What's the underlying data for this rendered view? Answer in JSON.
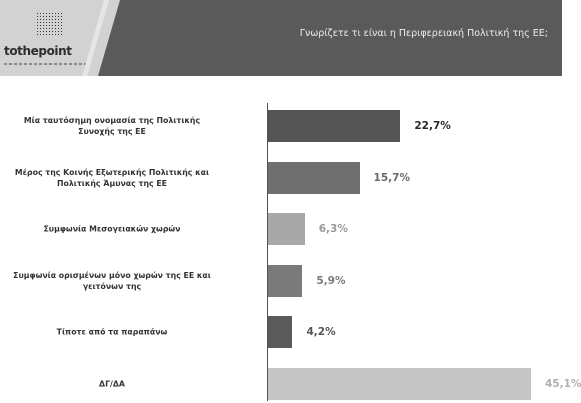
{
  "header": {
    "brand": "tothepoint",
    "title": "Γνωρίζετε τι είναι η Περιφερειακή Πολιτική της ΕΕ;"
  },
  "chart_data": {
    "type": "bar",
    "orientation": "horizontal",
    "categories": [
      [
        "Μία ταυτόσημη ονομασία της Πολιτικής",
        "Συνοχής της ΕΕ"
      ],
      [
        "Μέρος της Κοινής Εξωτερικής Πολιτικής και",
        "Πολιτικής Άμυνας της ΕΕ"
      ],
      [
        "Συμφωνία Μεσογειακών χωρών"
      ],
      [
        "Συμφωνία ορισμένων μόνο χωρών της ΕΕ και",
        "γειτόνων της"
      ],
      [
        "Τίποτε από τα παραπάνω"
      ],
      [
        "ΔΓ/ΔΑ"
      ]
    ],
    "values": [
      22.7,
      15.7,
      6.3,
      5.9,
      4.2,
      45.1
    ],
    "value_labels": [
      "22,7%",
      "15,7%",
      "6,3%",
      "5,9%",
      "4,2%",
      "45,1%"
    ],
    "bar_colors": [
      "#555555",
      "#6f6f6f",
      "#a8a8a8",
      "#7a7a7a",
      "#5a5a5a",
      "#c6c6c6"
    ],
    "label_colors": [
      "#2a2a2a",
      "#6a6a6a",
      "#9a9a9a",
      "#7a7a7a",
      "#555555",
      "#b0b0b0"
    ],
    "xlim": [
      0,
      45.1
    ],
    "grid": false,
    "legend": "none"
  }
}
